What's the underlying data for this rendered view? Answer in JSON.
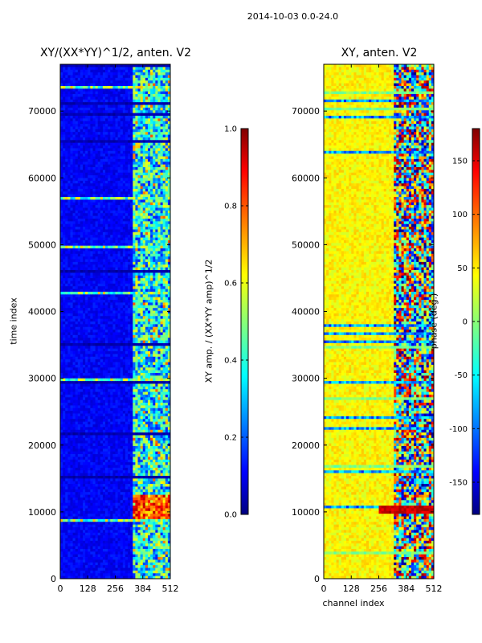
{
  "suptitle": "2014-10-03 0.0-24.0",
  "chart_data": [
    {
      "type": "heatmap",
      "title": "XY/(XX*YY)^1/2, anten. V2",
      "xlabel": "",
      "ylabel": "time index",
      "xlim": [
        0,
        512
      ],
      "ylim": [
        0,
        77000
      ],
      "xticks": [
        0,
        128,
        256,
        384,
        512
      ],
      "yticks": [
        0,
        10000,
        20000,
        30000,
        40000,
        50000,
        60000,
        70000
      ],
      "colormap": "jet",
      "colorbar": {
        "label": "XY amp. / (XX*YY amp)^1/2",
        "range": [
          0.0,
          1.0
        ],
        "ticks": [
          0.0,
          0.2,
          0.4,
          0.6,
          0.8,
          1.0
        ],
        "tick_labels": [
          "0.0",
          "0.2",
          "0.4",
          "0.6",
          "0.8",
          "1.0"
        ]
      },
      "features": {
        "background_value": 0.1,
        "active_channel_range": [
          340,
          512
        ],
        "bright_time_range": [
          8500,
          12500
        ],
        "bright_value": 0.85
      }
    },
    {
      "type": "heatmap",
      "title": "XY, anten. V2",
      "xlabel": "channel index",
      "ylabel": "",
      "xlim": [
        0,
        512
      ],
      "ylim": [
        0,
        77000
      ],
      "xticks": [
        0,
        128,
        256,
        384,
        512
      ],
      "yticks": [
        0,
        10000,
        20000,
        30000,
        40000,
        50000,
        60000,
        70000
      ],
      "colormap": "jet",
      "colorbar": {
        "label": "phase (deg.)",
        "range": [
          -180,
          180
        ],
        "ticks": [
          -150,
          -100,
          -50,
          0,
          50,
          100,
          150
        ],
        "tick_labels": [
          "-150",
          "-100",
          "-50",
          "0",
          "50",
          "100",
          "150"
        ]
      },
      "features": {
        "background_value": 60,
        "active_channel_range": [
          330,
          512
        ],
        "dark_band_time": 10500
      }
    }
  ],
  "colors": {
    "jet": [
      "#000080",
      "#0000ff",
      "#00ffff",
      "#ffff00",
      "#ff0000",
      "#800000"
    ]
  }
}
